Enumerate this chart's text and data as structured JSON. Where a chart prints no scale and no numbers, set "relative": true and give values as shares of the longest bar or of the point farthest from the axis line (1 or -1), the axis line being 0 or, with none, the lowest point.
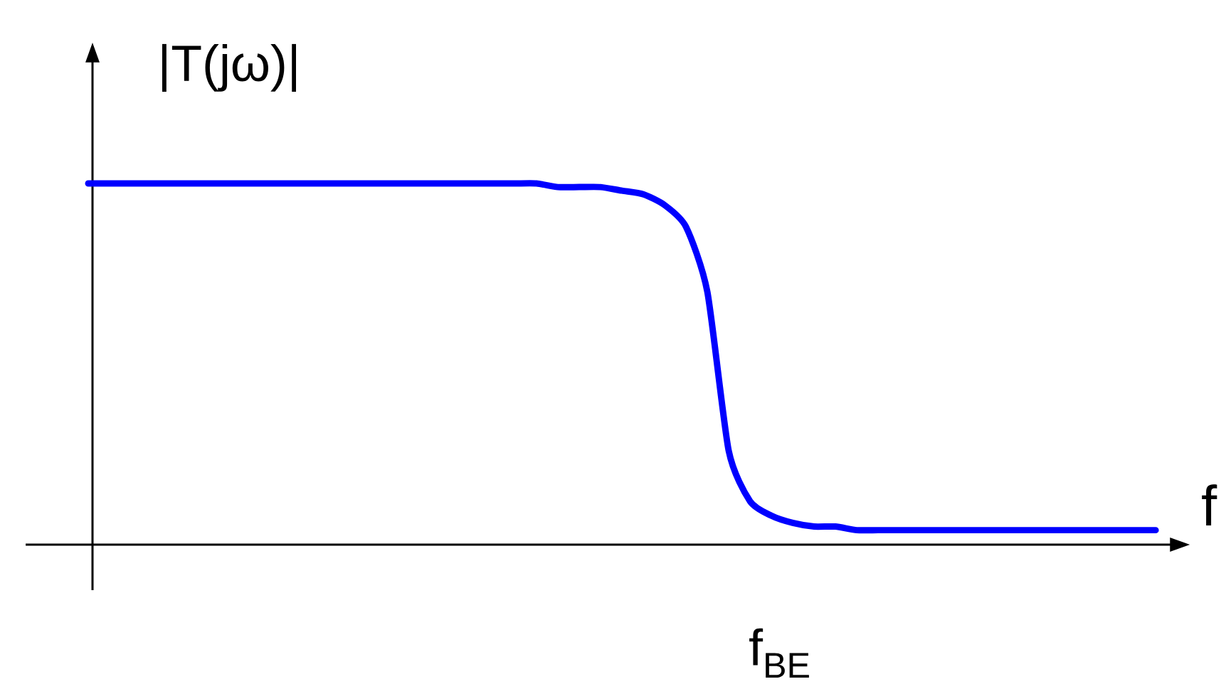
{
  "chart_data": {
    "type": "line",
    "relative": true,
    "ylabel": "|T(jω)|",
    "xlabel": "f",
    "annotations": [
      "f$_{BE}$"
    ],
    "categories": [
      null,
      null,
      null,
      null,
      null,
      null,
      null,
      null,
      null,
      null,
      null,
      null,
      null,
      null,
      null,
      null,
      null,
      null,
      null,
      null,
      null,
      null,
      null,
      null,
      null,
      null,
      null,
      null,
      null,
      null,
      null,
      null,
      null,
      null,
      null,
      null,
      null,
      null,
      null,
      null,
      null,
      null,
      null,
      null,
      null,
      null,
      null,
      null,
      null,
      null,
      null
    ],
    "series": [
      {
        "color": "#0000ff",
        "values": [
          1.0,
          1.0,
          1.0,
          1.0,
          1.0,
          1.0,
          1.0,
          1.0,
          1.0,
          1.0,
          1.0,
          1.0,
          1.0,
          1.0,
          1.0,
          1.0,
          1.0,
          1.0,
          1.0,
          1.0,
          1.0,
          1.0,
          0.99,
          0.99,
          0.99,
          0.98,
          0.97,
          0.94,
          0.88,
          0.7,
          0.26,
          0.12,
          0.08,
          0.06,
          0.05,
          0.05,
          0.04,
          0.04,
          0.04,
          0.04,
          0.04,
          0.04,
          0.04,
          0.04,
          0.04,
          0.04,
          0.04,
          0.04,
          0.04,
          0.04,
          0.04
        ]
      }
    ]
  }
}
